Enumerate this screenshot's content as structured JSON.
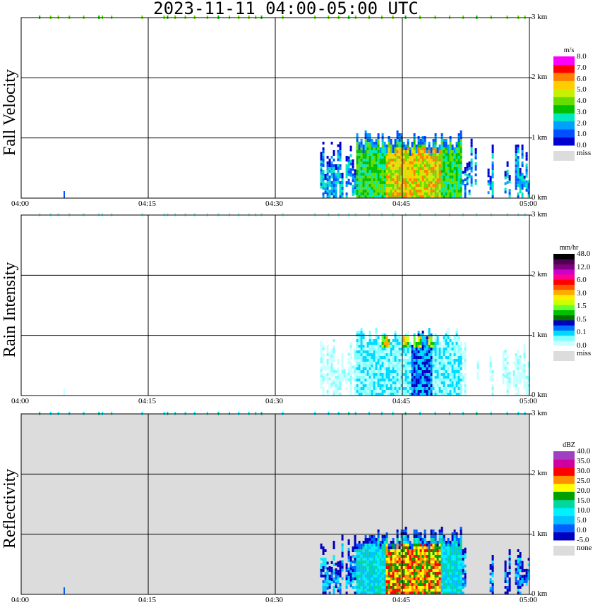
{
  "title": "2023-11-11   04:00-05:00 UTC",
  "colors": {
    "miss": "#dcdcdc",
    "velocity": [
      "#0000d0",
      "#0050ff",
      "#00a0ff",
      "#00e8c0",
      "#00c000",
      "#66dd00",
      "#c8f000",
      "#ffcc00",
      "#ff7f00",
      "#ff0000",
      "#ff00ff"
    ],
    "rain": [
      "#c8ffff",
      "#80ffff",
      "#00d8ff",
      "#0070ff",
      "#0000c0",
      "#007000",
      "#00c000",
      "#66ff33",
      "#ccff00",
      "#ffee00",
      "#ffaa00",
      "#ff5500",
      "#ff0000",
      "#ff0090",
      "#cc00cc",
      "#800080",
      "#500050",
      "#000000"
    ],
    "reflectivity": [
      "#0000c0",
      "#0060ff",
      "#00c0ff",
      "#00f0ff",
      "#00d8a0",
      "#00a000",
      "#ffff00",
      "#ff9000",
      "#ff0000",
      "#d000a0",
      "#a040c0"
    ]
  },
  "chart_data": [
    {
      "type": "heatmap",
      "name": "fall-velocity",
      "ylabel": "Fall Velocity",
      "x_ticks": [
        "04:00",
        "04:15",
        "04:30",
        "04:45",
        "05:00"
      ],
      "y_ticks": [
        "0 km",
        "1 km",
        "2 km",
        "3 km"
      ],
      "xlim_minutes": [
        0,
        60
      ],
      "ylim_km": [
        0,
        3.0
      ],
      "legend": {
        "unit": "m/s",
        "labels": [
          "8.0",
          "7.0",
          "6.0",
          "5.0",
          "4.0",
          "3.0",
          "2.0",
          "1.0",
          "0.0"
        ],
        "missing": "miss"
      },
      "echo": {
        "start_min": 35.3,
        "end_min": 60,
        "top_km": 1.0,
        "core_min": [
          40.5,
          49.5
        ],
        "core_top_km": 0.95,
        "peak_value": 6.0
      }
    },
    {
      "type": "heatmap",
      "name": "rain-intensity",
      "ylabel": "Rain Intensity",
      "x_ticks": [
        "04:00",
        "04:15",
        "04:30",
        "04:45",
        "05:00"
      ],
      "y_ticks": [
        "0 km",
        "1 km",
        "2 km",
        "3 km"
      ],
      "xlim_minutes": [
        0,
        60
      ],
      "ylim_km": [
        0,
        3.0
      ],
      "legend": {
        "unit": "mm/hr",
        "labels": [
          "48.0",
          "12.0",
          "6.0",
          "3.0",
          "1.5",
          "0.5",
          "0.1",
          "0.0"
        ],
        "missing": "miss"
      },
      "echo": {
        "start_min": 35.3,
        "end_min": 60,
        "top_km": 1.0,
        "bright_band_km": 0.85,
        "peak_value": 12.0
      }
    },
    {
      "type": "heatmap",
      "name": "reflectivity",
      "ylabel": "Reflectivity",
      "x_ticks": [
        "04:00",
        "04:15",
        "04:30",
        "04:45",
        "05:00"
      ],
      "y_ticks": [
        "0 km",
        "1 km",
        "2 km",
        "3 km"
      ],
      "xlim_minutes": [
        0,
        60
      ],
      "ylim_km": [
        0,
        3.0
      ],
      "legend": {
        "unit": "dBZ",
        "labels": [
          "40.0",
          "35.0",
          "30.0",
          "25.0",
          "20.0",
          "15.0",
          "10.0",
          "5.0",
          "0.0",
          "-5.0"
        ],
        "missing": "none"
      },
      "echo": {
        "start_min": 35.3,
        "end_min": 60,
        "top_km": 1.0,
        "core_min": [
          40.5,
          49.5
        ],
        "peak_value": 30.0
      }
    }
  ]
}
